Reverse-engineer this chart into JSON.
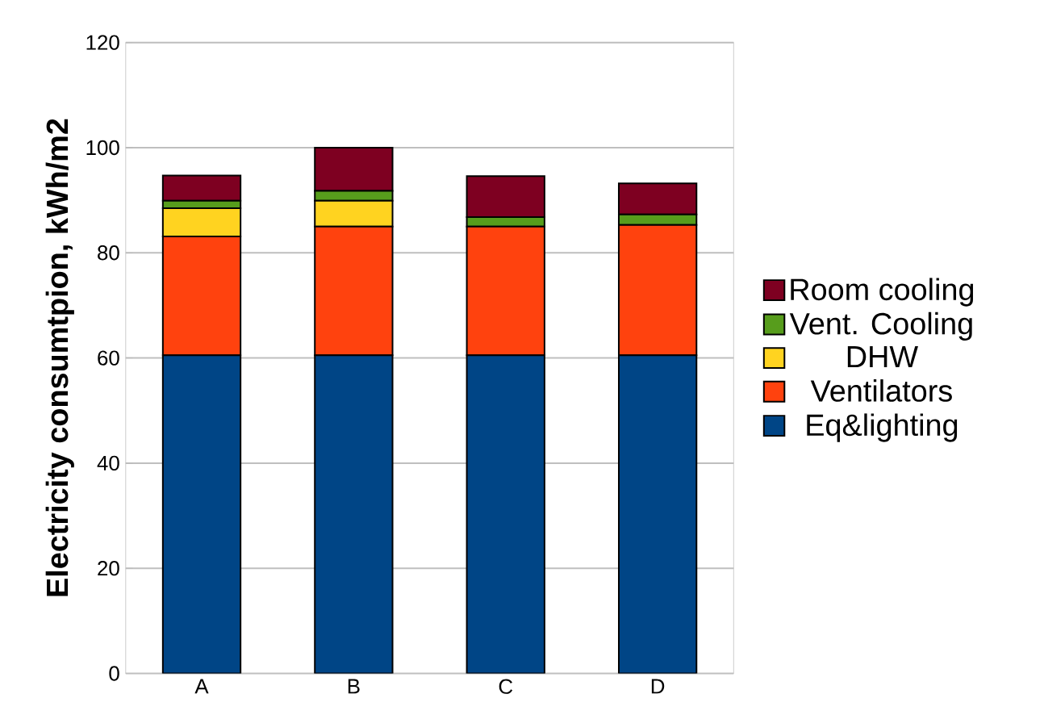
{
  "chart_data": {
    "type": "bar",
    "stacked": true,
    "ylabel": "Electricity consumtpion, kWh/m2",
    "categories": [
      "A",
      "B",
      "C",
      "D"
    ],
    "ylim": [
      0,
      120
    ],
    "yticks": [
      0,
      20,
      40,
      60,
      80,
      100,
      120
    ],
    "grid": "y",
    "legend": "right",
    "series": [
      {
        "name": "Eq&lighting",
        "color": "#004586",
        "values": [
          60.5,
          60.5,
          60.5,
          60.5
        ]
      },
      {
        "name": "Ventilators",
        "color": "#ff420e",
        "values": [
          22.6,
          24.5,
          24.5,
          24.8
        ]
      },
      {
        "name": "DHW",
        "color": "#ffd320",
        "values": [
          5.4,
          4.9,
          0,
          0
        ]
      },
      {
        "name": "Vent. Cooling",
        "color": "#579d1c",
        "values": [
          1.4,
          1.9,
          1.8,
          2.0
        ]
      },
      {
        "name": "Room cooling",
        "color": "#7e0021",
        "values": [
          4.8,
          8.2,
          7.8,
          5.9
        ]
      }
    ]
  }
}
